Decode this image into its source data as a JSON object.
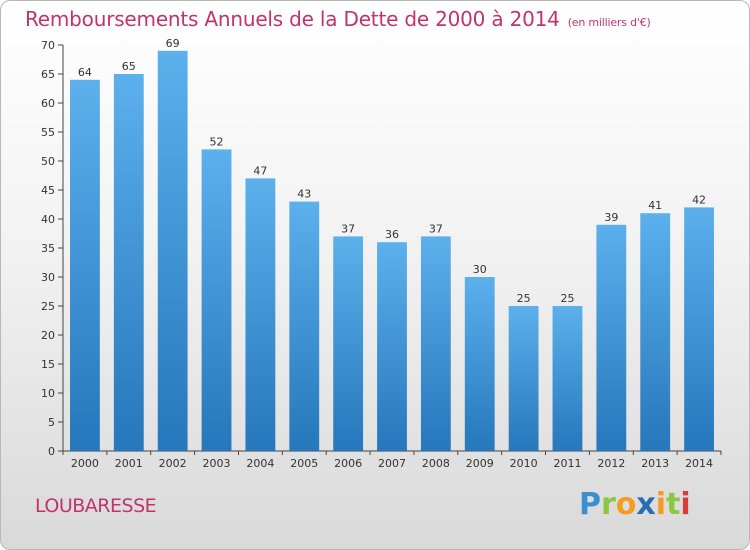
{
  "title": "Remboursements Annuels de la Dette de 2000 à 2014",
  "subtitle": "(en milliers d'€)",
  "city": "LOUBARESSE",
  "logo": {
    "p": "P",
    "r": "r",
    "o": "o",
    "x": "x",
    "i1": "i",
    "t": "t",
    "i2": "i"
  },
  "colors": {
    "bar_top": "#5cb0ec",
    "bar_bottom": "#2677bb",
    "title": "#c0346b"
  },
  "chart_data": {
    "type": "bar",
    "title": "Remboursements Annuels de la Dette de 2000 à 2014",
    "ylabel": "",
    "xlabel": "",
    "ylim": [
      0,
      70
    ],
    "yticks": [
      0,
      5,
      10,
      15,
      20,
      25,
      30,
      35,
      40,
      45,
      50,
      55,
      60,
      65,
      70
    ],
    "categories": [
      "2000",
      "2001",
      "2002",
      "2003",
      "2004",
      "2005",
      "2006",
      "2007",
      "2008",
      "2009",
      "2010",
      "2011",
      "2012",
      "2013",
      "2014"
    ],
    "values": [
      64,
      65,
      69,
      52,
      47,
      43,
      37,
      36,
      37,
      30,
      25,
      25,
      39,
      41,
      42
    ],
    "grid": false
  }
}
